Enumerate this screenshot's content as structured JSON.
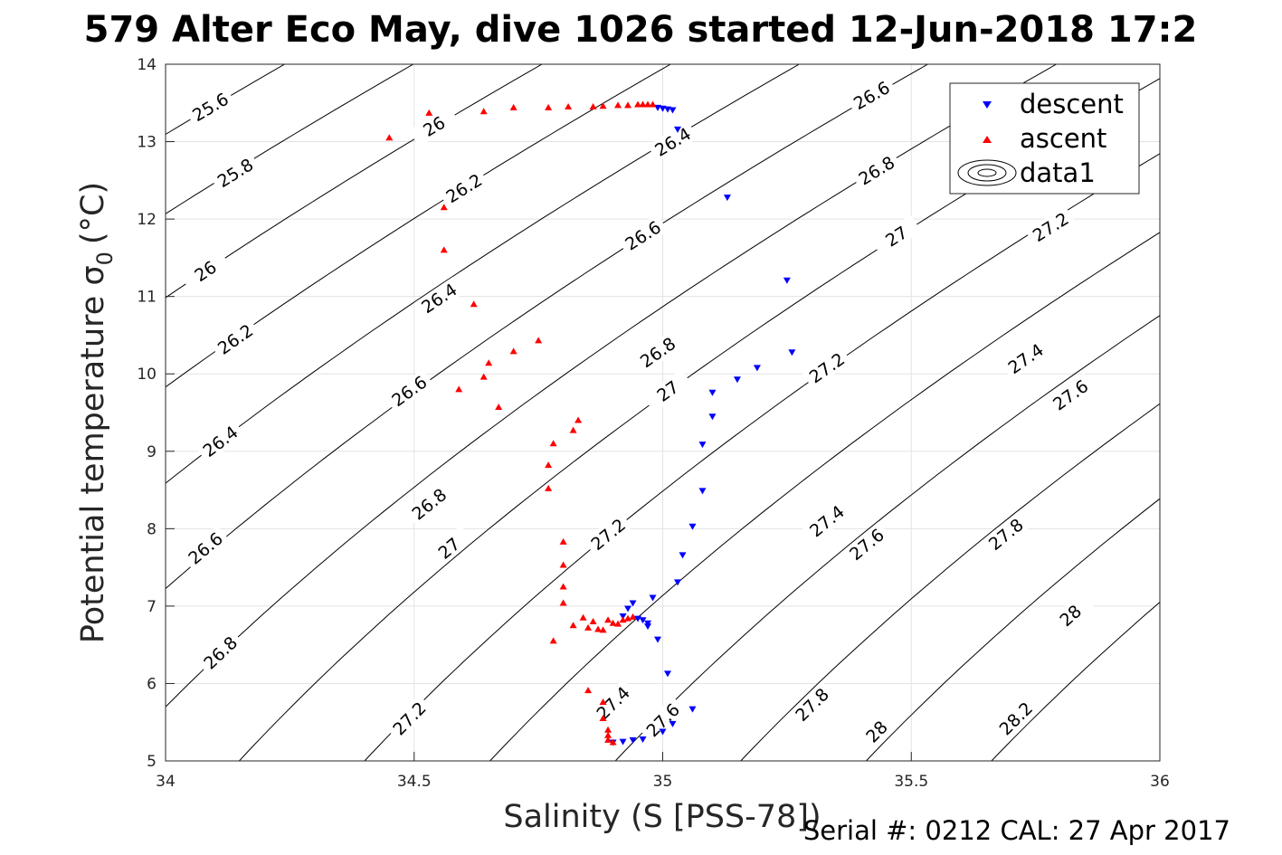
{
  "title": "579 Alter Eco May, dive 1026 started 12-Jun-2018 17:2",
  "footer": "Serial #: 0212  CAL: 27 Apr 2017",
  "chart_data": {
    "type": "scatter",
    "xlabel": "Salinity (S [PSS-78])",
    "ylabel": "Potential temperature σ",
    "ylabel_sub": "0",
    "ylabel_unit": "(°C)",
    "xlim": [
      34,
      36
    ],
    "ylim": [
      5,
      14
    ],
    "grid": true,
    "legend_position": "top-right",
    "x_ticks": [
      {
        "value": 34,
        "label": "34"
      },
      {
        "value": 34.5,
        "label": "34.5"
      },
      {
        "value": 35,
        "label": "35"
      },
      {
        "value": 35.5,
        "label": "35.5"
      },
      {
        "value": 36,
        "label": "36"
      }
    ],
    "y_ticks": [
      {
        "value": 5,
        "label": "5"
      },
      {
        "value": 6,
        "label": "6"
      },
      {
        "value": 7,
        "label": "7"
      },
      {
        "value": 8,
        "label": "8"
      },
      {
        "value": 9,
        "label": "9"
      },
      {
        "value": 10,
        "label": "10"
      },
      {
        "value": 11,
        "label": "11"
      },
      {
        "value": 12,
        "label": "12"
      },
      {
        "value": 13,
        "label": "13"
      },
      {
        "value": 14,
        "label": "14"
      }
    ],
    "series": [
      {
        "name": "descent",
        "marker": "triangle-down",
        "color": "#0000ff",
        "points": [
          [
            34.99,
            13.44
          ],
          [
            35.0,
            13.43
          ],
          [
            35.01,
            13.42
          ],
          [
            35.02,
            13.41
          ],
          [
            35.03,
            13.16
          ],
          [
            35.13,
            12.28
          ],
          [
            35.25,
            11.21
          ],
          [
            35.26,
            10.28
          ],
          [
            35.19,
            10.08
          ],
          [
            35.15,
            9.93
          ],
          [
            35.1,
            9.76
          ],
          [
            35.1,
            9.45
          ],
          [
            35.08,
            9.09
          ],
          [
            35.08,
            8.49
          ],
          [
            35.06,
            8.03
          ],
          [
            35.04,
            7.66
          ],
          [
            35.03,
            7.31
          ],
          [
            34.98,
            7.11
          ],
          [
            34.94,
            7.04
          ],
          [
            34.93,
            6.97
          ],
          [
            34.92,
            6.87
          ],
          [
            34.95,
            6.84
          ],
          [
            34.96,
            6.82
          ],
          [
            34.97,
            6.78
          ],
          [
            34.97,
            6.74
          ],
          [
            34.99,
            6.57
          ],
          [
            35.01,
            6.13
          ],
          [
            35.06,
            5.67
          ],
          [
            35.02,
            5.48
          ],
          [
            35.0,
            5.38
          ],
          [
            34.96,
            5.28
          ],
          [
            34.94,
            5.27
          ],
          [
            34.92,
            5.25
          ],
          [
            34.9,
            5.24
          ]
        ]
      },
      {
        "name": "ascent",
        "marker": "triangle-up",
        "color": "#ff0000",
        "points": [
          [
            34.45,
            13.05
          ],
          [
            34.53,
            13.37
          ],
          [
            34.64,
            13.39
          ],
          [
            34.7,
            13.44
          ],
          [
            34.77,
            13.44
          ],
          [
            34.81,
            13.45
          ],
          [
            34.86,
            13.45
          ],
          [
            34.88,
            13.46
          ],
          [
            34.91,
            13.47
          ],
          [
            34.93,
            13.47
          ],
          [
            34.95,
            13.48
          ],
          [
            34.96,
            13.48
          ],
          [
            34.97,
            13.48
          ],
          [
            34.98,
            13.48
          ],
          [
            34.56,
            12.15
          ],
          [
            34.56,
            11.6
          ],
          [
            34.62,
            10.9
          ],
          [
            34.75,
            10.43
          ],
          [
            34.7,
            10.29
          ],
          [
            34.65,
            10.14
          ],
          [
            34.64,
            9.96
          ],
          [
            34.59,
            9.8
          ],
          [
            34.67,
            9.57
          ],
          [
            34.83,
            9.4
          ],
          [
            34.82,
            9.27
          ],
          [
            34.78,
            9.1
          ],
          [
            34.77,
            8.82
          ],
          [
            34.77,
            8.52
          ],
          [
            34.8,
            7.83
          ],
          [
            34.8,
            7.53
          ],
          [
            34.8,
            7.25
          ],
          [
            34.8,
            7.04
          ],
          [
            34.82,
            6.75
          ],
          [
            34.84,
            6.85
          ],
          [
            34.85,
            6.72
          ],
          [
            34.86,
            6.8
          ],
          [
            34.87,
            6.7
          ],
          [
            34.88,
            6.69
          ],
          [
            34.89,
            6.82
          ],
          [
            34.9,
            6.78
          ],
          [
            34.91,
            6.77
          ],
          [
            34.92,
            6.82
          ],
          [
            34.93,
            6.84
          ],
          [
            34.94,
            6.86
          ],
          [
            34.78,
            6.55
          ],
          [
            34.85,
            5.91
          ],
          [
            34.88,
            5.76
          ],
          [
            34.88,
            5.55
          ],
          [
            34.89,
            5.4
          ],
          [
            34.89,
            5.33
          ],
          [
            34.89,
            5.27
          ],
          [
            34.9,
            5.24
          ]
        ]
      },
      {
        "name": "data1",
        "marker": "contour"
      }
    ],
    "contours": [
      {
        "level": 25.6,
        "labels": [
          [
            34.09,
            13.45
          ]
        ]
      },
      {
        "level": 25.8,
        "labels": [
          [
            34.14,
            12.6
          ]
        ]
      },
      {
        "level": 26,
        "labels": [
          [
            34.08,
            11.33
          ],
          [
            34.54,
            13.2
          ]
        ]
      },
      {
        "level": 26.2,
        "labels": [
          [
            34.14,
            10.45
          ],
          [
            34.6,
            12.4
          ]
        ]
      },
      {
        "level": 26.4,
        "labels": [
          [
            34.11,
            9.13
          ],
          [
            34.55,
            10.98
          ],
          [
            35.02,
            13.0
          ]
        ]
      },
      {
        "level": 26.6,
        "labels": [
          [
            34.08,
            7.75
          ],
          [
            34.49,
            9.78
          ],
          [
            34.96,
            11.79
          ],
          [
            35.42,
            13.6
          ]
        ]
      },
      {
        "level": 26.8,
        "labels": [
          [
            34.11,
            6.4
          ],
          [
            34.53,
            8.32
          ],
          [
            34.99,
            10.28
          ],
          [
            35.43,
            12.63
          ]
        ]
      },
      {
        "level": 27,
        "labels": [
          [
            34.57,
            7.75
          ],
          [
            35.01,
            9.78
          ],
          [
            35.47,
            11.78
          ]
        ]
      },
      {
        "level": 27.2,
        "labels": [
          [
            34.49,
            5.55
          ],
          [
            34.89,
            7.93
          ],
          [
            35.33,
            10.08
          ],
          [
            35.78,
            11.9
          ]
        ]
      },
      {
        "level": 27.4,
        "labels": [
          [
            34.9,
            5.75
          ],
          [
            35.33,
            8.1
          ],
          [
            35.73,
            10.2
          ]
        ]
      },
      {
        "level": 27.6,
        "labels": [
          [
            35.0,
            5.53
          ],
          [
            35.41,
            7.8
          ],
          [
            35.82,
            9.73
          ]
        ]
      },
      {
        "level": 27.8,
        "labels": [
          [
            35.3,
            5.73
          ],
          [
            35.69,
            7.93
          ]
        ]
      },
      {
        "level": 28,
        "labels": [
          [
            35.43,
            5.38
          ],
          [
            35.82,
            6.88
          ]
        ]
      },
      {
        "level": 28.2,
        "labels": [
          [
            35.71,
            5.55
          ]
        ]
      }
    ]
  }
}
